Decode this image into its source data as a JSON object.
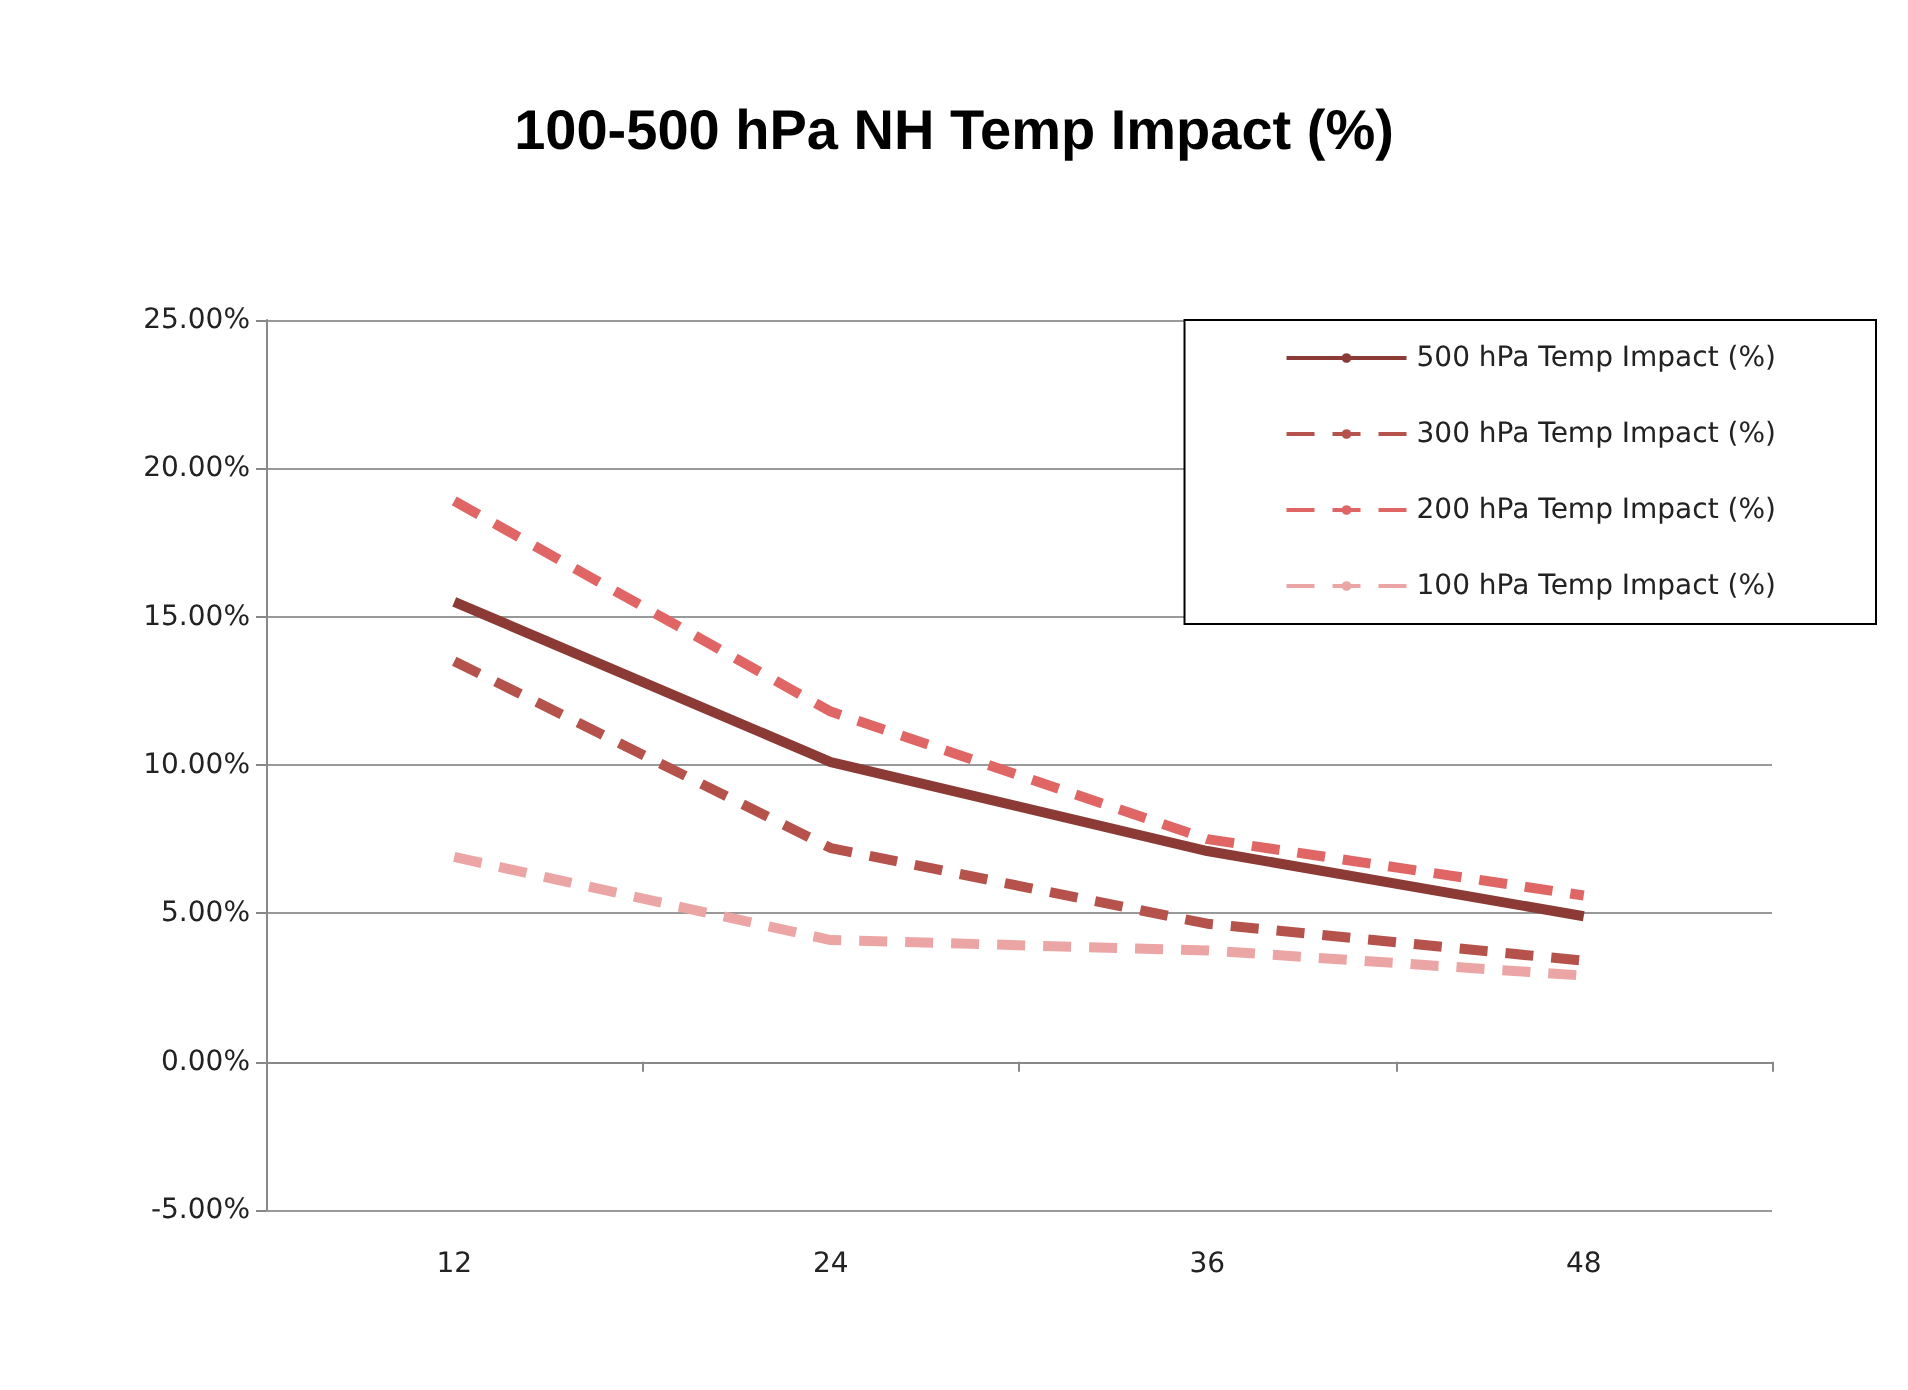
{
  "chart_data": {
    "type": "line",
    "title": "100-500 hPa NH Temp Impact (%)",
    "categories": [
      "12",
      "24",
      "36",
      "48"
    ],
    "series": [
      {
        "name": "500 hPa Temp Impact (%)",
        "color": "#8b3a36",
        "line_style": "solid",
        "values": [
          15.5,
          10.1,
          7.1,
          4.9
        ]
      },
      {
        "name": "300 hPa Temp Impact (%)",
        "color": "#b5524c",
        "line_style": "dashed",
        "values": [
          13.5,
          7.2,
          4.65,
          3.4
        ]
      },
      {
        "name": "200 hPa Temp Impact (%)",
        "color": "#e06666",
        "line_style": "dashed",
        "values": [
          18.9,
          11.8,
          7.5,
          5.6
        ]
      },
      {
        "name": "100 hPa Temp Impact (%)",
        "color": "#eba5a5",
        "line_style": "dashed",
        "values": [
          6.9,
          4.1,
          3.75,
          2.9
        ]
      }
    ],
    "ylim": [
      -5,
      25
    ],
    "yticks": [
      {
        "value": -5,
        "label": "-5.00%"
      },
      {
        "value": 0,
        "label": "0.00%"
      },
      {
        "value": 5,
        "label": "5.00%"
      },
      {
        "value": 10,
        "label": "10.00%"
      },
      {
        "value": 15,
        "label": "15.00%"
      },
      {
        "value": 20,
        "label": "20.00%"
      },
      {
        "value": 25,
        "label": "25.00%"
      }
    ],
    "grid": "y",
    "legend": "top right",
    "marker": "none"
  }
}
